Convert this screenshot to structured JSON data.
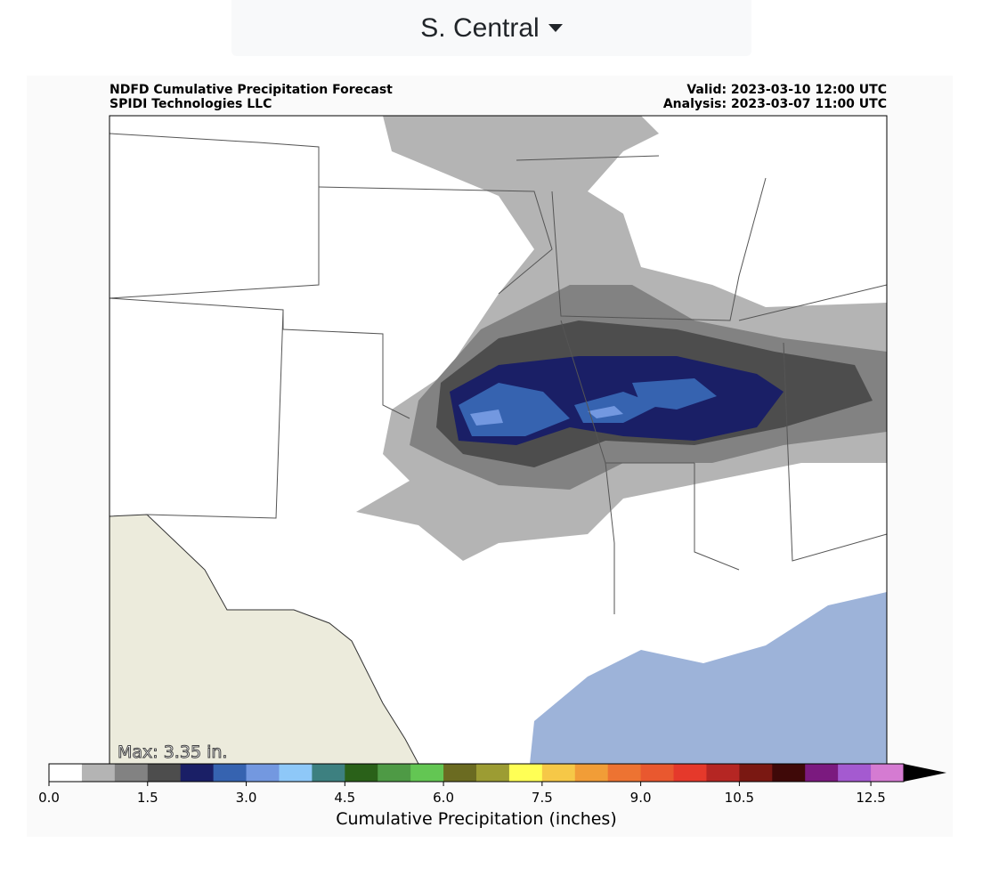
{
  "dropdown": {
    "label": "S. Central"
  },
  "map": {
    "title_left": [
      "NDFD Cumulative Precipitation Forecast",
      "SPIDI Technologies LLC"
    ],
    "title_right": [
      "Valid: 2023-03-10 12:00 UTC",
      "Analysis: 2023-03-07 11:00 UTC"
    ],
    "max_label": "Max: 3.35 in.",
    "colorbar": {
      "label": "Cumulative Precipitation (inches)",
      "range": [
        0,
        13
      ],
      "extend": "max",
      "extend_color": "#000000",
      "colors": [
        "#ffffff",
        "#b4b4b4",
        "#828282",
        "#4d4d4d",
        "#1a1f66",
        "#3663b0",
        "#7398e0",
        "#8ec8f8",
        "#3d8080",
        "#2a6119",
        "#4e9a45",
        "#63c653",
        "#6b6b21",
        "#9c9c33",
        "#ffff55",
        "#f6c847",
        "#f19d37",
        "#ed7332",
        "#e9582f",
        "#e5392b",
        "#b52623",
        "#7a1812",
        "#3f0908",
        "#7b1a7f",
        "#a45ad0",
        "#d57bd2"
      ],
      "ticks": [
        {
          "value": 0,
          "label": "0.0"
        },
        1.5,
        {
          "value": 3,
          "label": "3.0"
        },
        4.5,
        {
          "value": 6,
          "label": "6.0"
        },
        7.5,
        {
          "value": 9,
          "label": "9.0"
        },
        10.5,
        12.5
      ]
    }
  }
}
